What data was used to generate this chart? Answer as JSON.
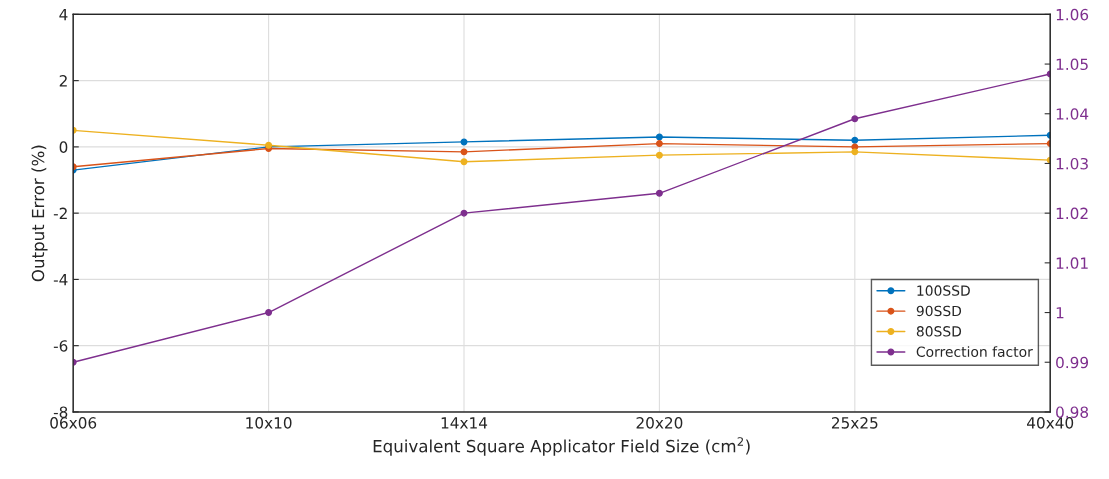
{
  "chart_data": {
    "type": "line",
    "xlabel": "Equivalent Square Applicator Field Size (cm$^{2}$)",
    "ylabel": "Output Error (%)",
    "categories": [
      "06x06",
      "10x10",
      "14x14",
      "20x20",
      "25x25",
      "40x40"
    ],
    "ylim": [
      -8,
      4
    ],
    "yticks": [
      -8,
      -6,
      -4,
      -2,
      0,
      2,
      4
    ],
    "y2lim": [
      0.98,
      1.06
    ],
    "y2ticks": [
      0.98,
      0.99,
      1,
      1.01,
      1.02,
      1.03,
      1.04,
      1.05,
      1.06
    ],
    "series": [
      {
        "name": "100SSD",
        "color": "#0072bd",
        "values": [
          -0.7,
          0,
          0.15,
          0.3,
          0.2,
          0.35
        ]
      },
      {
        "name": "90SSD",
        "color": "#d95319",
        "values": [
          -0.6,
          -0.05,
          -0.15,
          0.1,
          0.0,
          0.1
        ]
      },
      {
        "name": "80SSD",
        "color": "#edb120",
        "values": [
          0.5,
          0.05,
          -0.45,
          -0.25,
          -0.15,
          -0.4
        ]
      },
      {
        "name": "Correction factor",
        "color": "#7e2f8e",
        "axis": "y2",
        "values": [
          0.99,
          1.0,
          1.02,
          1.024,
          1.039,
          1.048
        ]
      }
    ],
    "grid": true,
    "legend": "bottom right",
    "marker": "circle",
    "line_style": "solid"
  }
}
